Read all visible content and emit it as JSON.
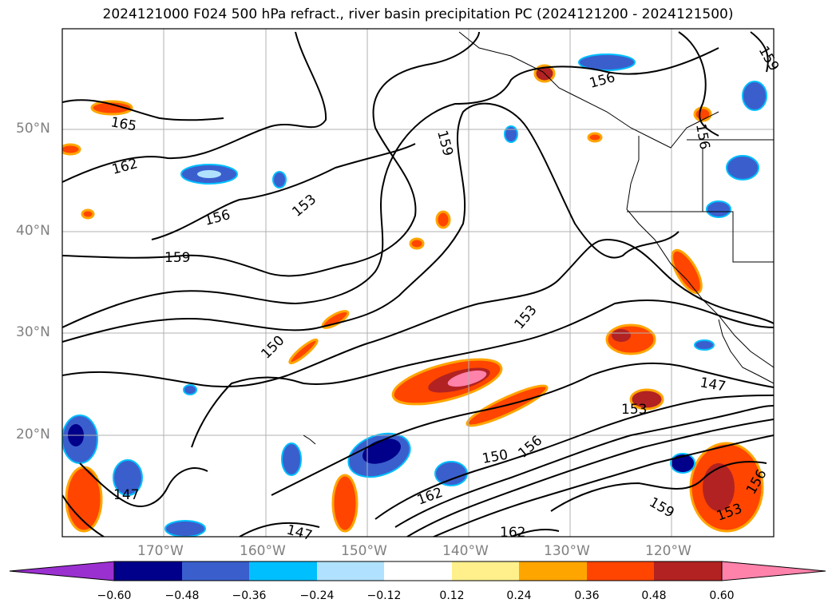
{
  "title": "2024121000 F024 500 hPa refract., river basin precipitation PC (2024121200 - 2024121500)",
  "lat_labels": [
    "50°N",
    "40°N",
    "30°N",
    "20°N"
  ],
  "lon_labels": [
    "170°W",
    "160°W",
    "150°W",
    "140°W",
    "130°W",
    "120°W"
  ],
  "colorbar": {
    "ticks": [
      "−0.60",
      "−0.48",
      "−0.36",
      "−0.24",
      "−0.12",
      "0.12",
      "0.24",
      "0.36",
      "0.48",
      "0.60"
    ],
    "colors": [
      "#9b30d0",
      "#00008b",
      "#3a5fcd",
      "#00bfff",
      "#b0e2ff",
      "#ffffff",
      "#fff08c",
      "#ffa500",
      "#ff4500",
      "#b22222",
      "#ff82ab",
      "#ff82ab"
    ]
  },
  "contour_labels": [
    "165",
    "162",
    "156",
    "159",
    "153",
    "150",
    "159",
    "156",
    "153",
    "147",
    "153",
    "150",
    "156",
    "162",
    "147",
    "159",
    "153",
    "156",
    "162",
    "159",
    "156",
    "147"
  ]
}
